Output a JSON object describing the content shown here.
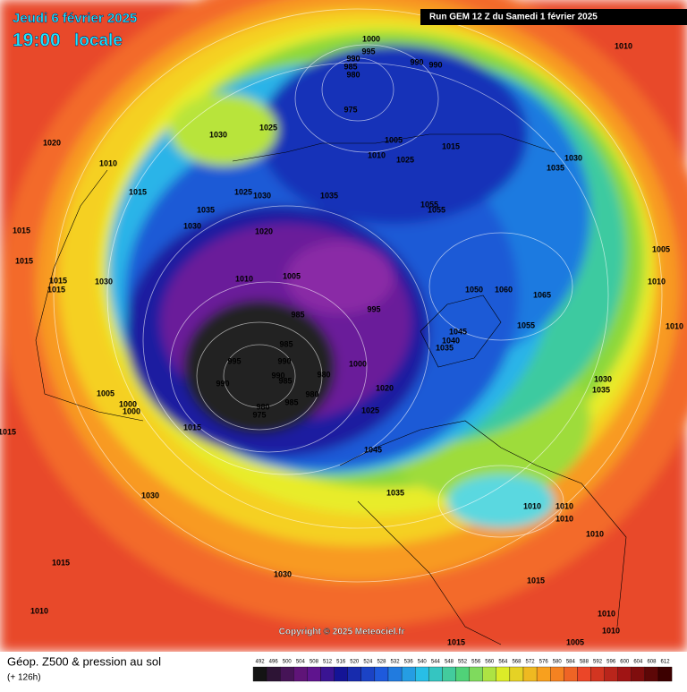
{
  "header": {
    "date": "Jeudi 6 février 2025",
    "time": "19:00",
    "time_note": "locale",
    "run": "Run GEM 12 Z du Samedi 1 février 2025"
  },
  "copyright": "Copyright © 2025 Meteociel.fr",
  "footer": {
    "title": "Géop. Z500 & pression au sol",
    "lead": "(+ 126h)"
  },
  "colorbar": {
    "ticks": [
      492,
      496,
      500,
      504,
      508,
      512,
      516,
      520,
      524,
      528,
      532,
      536,
      540,
      544,
      548,
      552,
      556,
      560,
      564,
      568,
      572,
      576,
      580,
      584,
      588,
      592,
      596,
      600,
      604,
      608,
      612
    ]
  },
  "isobar_labels": [
    "1000",
    "995",
    "990",
    "985",
    "980",
    "990",
    "990",
    "975",
    "1010",
    "1020",
    "1030",
    "1025",
    "1005",
    "1010",
    "1025",
    "1015",
    "1035",
    "1030",
    "1010",
    "1015",
    "1025",
    "1030",
    "1035",
    "1035",
    "1030",
    "1055",
    "1055",
    "1020",
    "1015",
    "1010",
    "1005",
    "1015",
    "1015",
    "1030",
    "1015",
    "1050",
    "1060",
    "1065",
    "1005",
    "1010",
    "995",
    "985",
    "985",
    "1045",
    "1040",
    "1035",
    "1055",
    "1010",
    "995",
    "990",
    "980",
    "1000",
    "990",
    "990",
    "985",
    "980",
    "985",
    "1020",
    "1005",
    "1000",
    "1000",
    "980",
    "975",
    "1025",
    "1030",
    "1035",
    "1015",
    "1015",
    "1045",
    "1030",
    "1035",
    "1010",
    "1010",
    "1010",
    "1010",
    "1015",
    "1030",
    "1015",
    "1010",
    "1010",
    "1010",
    "1005",
    "1015"
  ]
}
